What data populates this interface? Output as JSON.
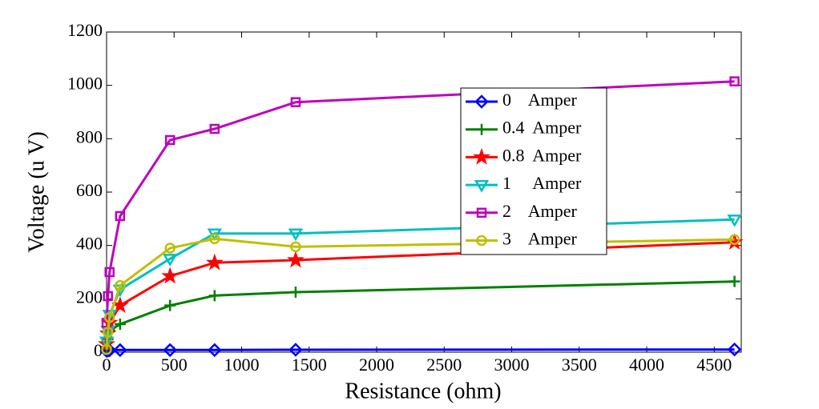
{
  "chart_data": {
    "type": "line",
    "xlabel": "Resistance (ohm)",
    "ylabel": "Voltage (u V)",
    "x": [
      0,
      10,
      22,
      100,
      470,
      800,
      1400,
      4650
    ],
    "series": [
      {
        "name": "0    Amper",
        "color": "#0000ff",
        "marker": "diamond",
        "values": [
          5,
          6,
          7,
          8,
          8,
          8,
          9,
          10
        ]
      },
      {
        "name": "0.4  Amper",
        "color": "#008000",
        "marker": "plus",
        "values": [
          20,
          50,
          80,
          105,
          175,
          212,
          225,
          265
        ]
      },
      {
        "name": "0.8  Amper",
        "color": "#ff0000",
        "marker": "star",
        "values": [
          30,
          70,
          110,
          175,
          285,
          335,
          345,
          412
        ]
      },
      {
        "name": "1     Amper",
        "color": "#00bfbf",
        "marker": "triangle-down",
        "values": [
          40,
          80,
          140,
          235,
          350,
          445,
          445,
          497
        ]
      },
      {
        "name": "2    Amper",
        "color": "#bf00bf",
        "marker": "square",
        "values": [
          110,
          210,
          300,
          510,
          795,
          837,
          937,
          1015
        ]
      },
      {
        "name": "3    Amper",
        "color": "#bfbf00",
        "marker": "circle",
        "values": [
          10,
          75,
          130,
          250,
          390,
          425,
          395,
          422
        ]
      }
    ],
    "xlim": [
      0,
      4700
    ],
    "ylim": [
      0,
      1200
    ],
    "xticks": [
      0,
      500,
      1000,
      1500,
      2000,
      2500,
      3000,
      3500,
      4000,
      4500
    ],
    "yticks": [
      0,
      200,
      400,
      600,
      800,
      1000,
      1200
    ],
    "grid": false,
    "legend": "upper right"
  }
}
